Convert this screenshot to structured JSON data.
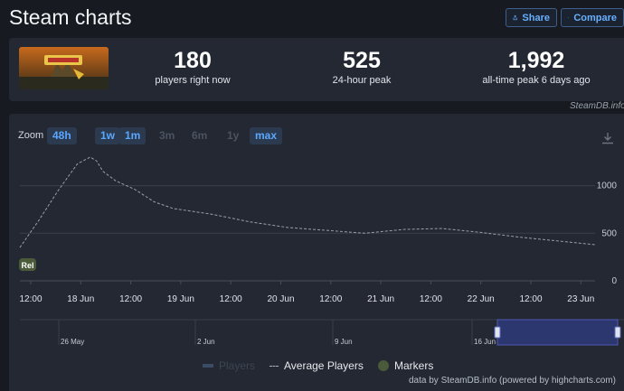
{
  "header": {
    "title": "Steam charts",
    "share_label": "Share",
    "compare_label": "Compare"
  },
  "stats": [
    {
      "value": "180",
      "label": "players right now"
    },
    {
      "value": "525",
      "label": "24-hour peak"
    },
    {
      "value": "1,992",
      "label": "all-time peak 6 days ago"
    }
  ],
  "credit_top": "SteamDB.info",
  "zoom": {
    "label": "Zoom",
    "buttons": [
      {
        "label": "48h",
        "enabled": true
      },
      {
        "label": "1w",
        "enabled": true
      },
      {
        "label": "1m",
        "enabled": true
      },
      {
        "label": "3m",
        "enabled": false
      },
      {
        "label": "6m",
        "enabled": false
      },
      {
        "label": "1y",
        "enabled": false
      },
      {
        "label": "max",
        "enabled": true
      }
    ]
  },
  "chart_data": {
    "type": "line",
    "y_ticks": [
      "1000",
      "500",
      "0"
    ],
    "ylim": [
      0,
      1300
    ],
    "x_ticks": [
      "12:00",
      "18 Jun",
      "12:00",
      "19 Jun",
      "12:00",
      "20 Jun",
      "12:00",
      "21 Jun",
      "12:00",
      "22 Jun",
      "12:00",
      "23 Jun"
    ],
    "series": [
      {
        "name": "Average Players",
        "x_hours": [
          0,
          6,
          12,
          18,
          22,
          24,
          26,
          30,
          36,
          42,
          48,
          60,
          72,
          84,
          96,
          108,
          120,
          132,
          144,
          156,
          168,
          180
        ],
        "values": [
          350,
          640,
          950,
          1230,
          1300,
          1260,
          1150,
          1050,
          960,
          830,
          760,
          700,
          620,
          560,
          530,
          500,
          540,
          550,
          510,
          460,
          420,
          380
        ]
      }
    ],
    "marker": {
      "label": "Rel",
      "x_hours": 0
    },
    "navigator_ticks": [
      "26 May",
      "2 Jun",
      "9 Jun",
      "16 Jun"
    ],
    "grid": true
  },
  "legend": {
    "players": "Players",
    "average": "Average Players",
    "markers": "Markers"
  },
  "credit_bottom": "data by SteamDB.info (powered by highcharts.com)",
  "colors": {
    "accent": "#66b0ff",
    "navigator_selection": "#2f3a7a"
  }
}
